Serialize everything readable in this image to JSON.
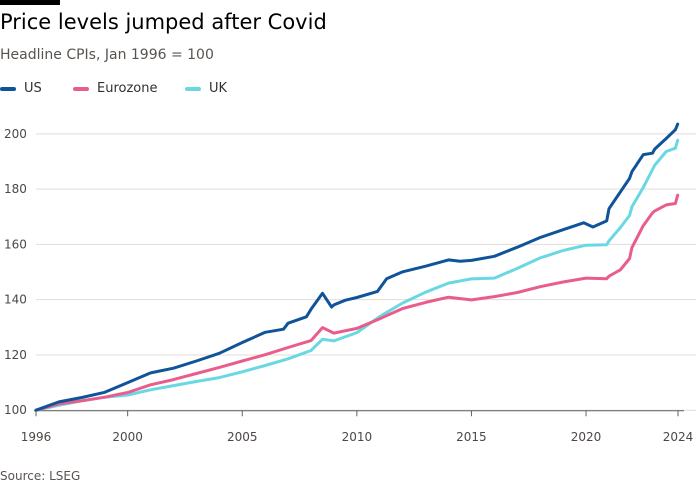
{
  "header": {
    "title": "Price levels jumped after Covid",
    "subtitle": "Headline CPIs, Jan 1996 = 100"
  },
  "source": "Source: LSEG",
  "colors": {
    "us": "#0f5499",
    "eurozone": "#e95d8c",
    "uk": "#6ad8e3",
    "grid": "#e3dcd6",
    "axis": "#66605c"
  },
  "chart_data": {
    "type": "line",
    "title": "Price levels jumped after Covid",
    "subtitle": "Headline CPIs, Jan 1996 = 100",
    "xlabel": "",
    "ylabel": "",
    "xlim": [
      1996,
      2024.1
    ],
    "ylim": [
      99,
      205
    ],
    "x_ticks": [
      1996,
      2000,
      2005,
      2010,
      2015,
      2020,
      2024
    ],
    "y_ticks": [
      100,
      120,
      140,
      160,
      180,
      200
    ],
    "grid": "horizontal",
    "legend_position": "top-left",
    "series": [
      {
        "name": "US",
        "color_key": "us",
        "x": [
          1996,
          1997,
          1998,
          1999,
          2000,
          2001,
          2002,
          2003,
          2004,
          2005,
          2006,
          2006.8,
          2007,
          2007.8,
          2008,
          2008.5,
          2008.9,
          2009,
          2009.5,
          2010,
          2010.9,
          2011.3,
          2012,
          2013,
          2014,
          2014.5,
          2015,
          2016,
          2017,
          2018,
          2019,
          2019.9,
          2020.3,
          2020.9,
          2021,
          2021.5,
          2021.9,
          2022,
          2022.5,
          2022.9,
          2023,
          2023.5,
          2023.9,
          2024
        ],
        "y": [
          100,
          103,
          104.6,
          106.5,
          110,
          113.5,
          115.2,
          117.8,
          120.6,
          124.5,
          128.2,
          129.3,
          131.5,
          133.8,
          136.5,
          142.3,
          137.3,
          138.1,
          139.8,
          140.8,
          143,
          147.6,
          150.1,
          152.1,
          154.4,
          153.9,
          154.2,
          155.7,
          159,
          162.5,
          165.3,
          167.8,
          166.3,
          168.5,
          172.9,
          179,
          183.9,
          186.3,
          192.5,
          193,
          194.5,
          198.3,
          201.5,
          203.5
        ]
      },
      {
        "name": "Eurozone",
        "color_key": "eurozone",
        "x": [
          1996,
          1997,
          1998,
          1999,
          2000,
          2001,
          2002,
          2003,
          2004,
          2005,
          2006,
          2007,
          2008,
          2008.5,
          2009,
          2010,
          2011,
          2012,
          2013,
          2014,
          2015,
          2016,
          2017,
          2018,
          2019,
          2020,
          2020.9,
          2021,
          2021.5,
          2021.9,
          2022,
          2022.5,
          2022.9,
          2023,
          2023.5,
          2023.9,
          2024
        ],
        "y": [
          100,
          102.3,
          103.4,
          104.7,
          106.4,
          109.2,
          111.1,
          113.3,
          115.5,
          117.8,
          120.1,
          122.7,
          125.2,
          129.9,
          127.9,
          129.6,
          133.1,
          136.8,
          139,
          140.9,
          139.9,
          141.1,
          142.6,
          144.7,
          146.4,
          147.8,
          147.6,
          148.5,
          150.8,
          154.9,
          158.8,
          166.8,
          171.4,
          172.1,
          174.3,
          174.8,
          177.8
        ]
      },
      {
        "name": "UK",
        "color_key": "uk",
        "x": [
          1996,
          1997,
          1998,
          1999,
          2000,
          2001,
          2002,
          2003,
          2004,
          2005,
          2006,
          2007,
          2008,
          2008.5,
          2009,
          2010,
          2011,
          2012,
          2013,
          2014,
          2015,
          2016,
          2017,
          2018,
          2019,
          2020,
          2020.9,
          2021,
          2021.5,
          2021.9,
          2022,
          2022.5,
          2022.9,
          2023,
          2023.5,
          2023.9,
          2024
        ],
        "y": [
          100,
          101.8,
          103.4,
          104.7,
          105.5,
          107.4,
          108.9,
          110.4,
          111.8,
          113.9,
          116.2,
          118.6,
          121.6,
          125.7,
          125.1,
          128.1,
          133.9,
          138.8,
          142.7,
          146,
          147.5,
          147.8,
          151.3,
          155.1,
          157.8,
          159.7,
          159.9,
          161.3,
          166.1,
          170.5,
          173.6,
          180.6,
          187.1,
          188.7,
          193.6,
          194.8,
          197.7
        ]
      }
    ]
  }
}
